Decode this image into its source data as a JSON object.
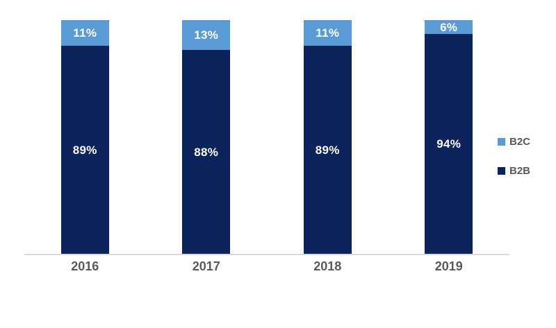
{
  "chart_data": {
    "type": "bar",
    "stacked": true,
    "orientation": "vertical",
    "categories": [
      "2016",
      "2017",
      "2018",
      "2019"
    ],
    "series": [
      {
        "name": "B2B",
        "color": "#0D235C",
        "values": [
          89,
          88,
          89,
          94
        ],
        "labels": [
          "89%",
          "88%",
          "89%",
          "94%"
        ]
      },
      {
        "name": "B2C",
        "color": "#5B9BD5",
        "values": [
          11,
          13,
          11,
          6
        ],
        "labels": [
          "11%",
          "13%",
          "11%",
          "6%"
        ]
      }
    ],
    "legend": {
      "position": "right",
      "entries": [
        "B2C",
        "B2B"
      ]
    },
    "title": "",
    "xlabel": "",
    "ylabel": "",
    "ylim": [
      0,
      100
    ],
    "grid": false,
    "axis": {
      "baseline_color": "#D9D9D9",
      "category_label_color": "#595959"
    },
    "data_label_color": "#FFFFFF"
  }
}
